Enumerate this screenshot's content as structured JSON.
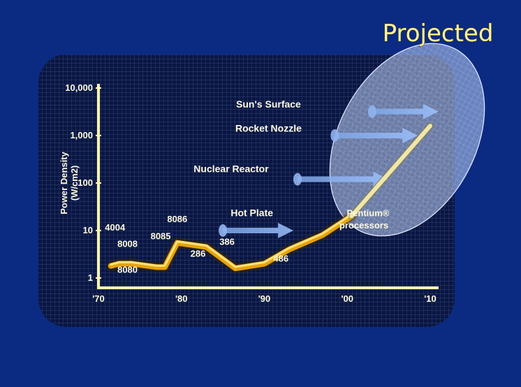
{
  "title": "Projected",
  "chart_data": {
    "type": "line",
    "y_scale": "log",
    "ylim": [
      1,
      10000
    ],
    "xlim": [
      1970,
      2010
    ],
    "ylabel_lines": [
      "Power Density",
      "(W/cm2)"
    ],
    "x_tick_labels": [
      "'70",
      "'80",
      "'90",
      "'00",
      "'10"
    ],
    "x_ticks": [
      1970,
      1980,
      1990,
      2000,
      2010
    ],
    "y_tick_labels": [
      "1",
      "10",
      "100",
      "1,000",
      "10,000"
    ],
    "y_ticks": [
      1,
      10,
      100,
      1000,
      10000
    ],
    "grid": true,
    "series": [
      {
        "values": [
          {
            "x": 1971.5,
            "y": 1.8
          },
          {
            "x": 1972.5,
            "y": 2.0
          },
          {
            "x": 1974,
            "y": 2.0
          },
          {
            "x": 1977,
            "y": 1.7
          },
          {
            "x": 1978,
            "y": 1.7
          },
          {
            "x": 1979.5,
            "y": 5.5
          },
          {
            "x": 1983,
            "y": 4.5
          },
          {
            "x": 1986.5,
            "y": 1.6
          },
          {
            "x": 1990,
            "y": 2.0
          },
          {
            "x": 1993,
            "y": 4.0
          },
          {
            "x": 1997,
            "y": 8.0
          },
          {
            "x": 2000.5,
            "y": 20
          }
        ]
      },
      {
        "projected": true,
        "values": [
          {
            "x": 2000.5,
            "y": 20
          },
          {
            "x": 2010,
            "y": 1600
          }
        ]
      }
    ],
    "point_labels": [
      {
        "text": "4004",
        "x": 1972,
        "y": 10
      },
      {
        "text": "8008",
        "x": 1973.5,
        "y": 4.5
      },
      {
        "text": "8080",
        "x": 1973.5,
        "y": 1.3
      },
      {
        "text": "8085",
        "x": 1977.5,
        "y": 6.5
      },
      {
        "text": "8086",
        "x": 1979.5,
        "y": 15
      },
      {
        "text": "286",
        "x": 1982,
        "y": 2.8
      },
      {
        "text": "386",
        "x": 1985.5,
        "y": 5.0
      },
      {
        "text": "486",
        "x": 1992,
        "y": 2.2
      },
      {
        "text": "Pentium®",
        "x": 2002.5,
        "y": 20
      },
      {
        "text": "processors",
        "x": 2002,
        "y": 11
      }
    ],
    "annotations": [
      {
        "text": "Hot Plate",
        "x": 1988.5,
        "y": 20,
        "arrow_from": 1985,
        "arrow_to": 1993.5,
        "arrow_y": 10
      },
      {
        "text": "Nuclear Reactor",
        "x": 1986,
        "y": 170,
        "arrow_from": 1994,
        "arrow_to": 2005,
        "arrow_y": 120
      },
      {
        "text": "Rocket Nozzle",
        "x": 1990.5,
        "y": 1200,
        "arrow_from": 1998.5,
        "arrow_to": 2008.5,
        "arrow_y": 1000
      },
      {
        "text": "Sun's Surface",
        "x": 1990.5,
        "y": 3900,
        "arrow_from": 2003,
        "arrow_to": 2011,
        "arrow_y": 3200
      }
    ]
  }
}
